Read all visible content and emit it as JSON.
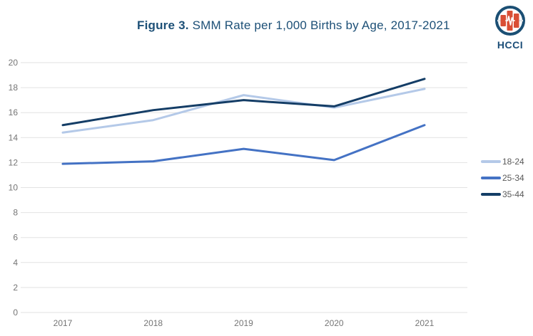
{
  "header": {
    "title_prefix": "Figure 3.",
    "title_rest": " SMM Rate per 1,000 Births by Age, 2017-2021"
  },
  "logo": {
    "text": "HCCI",
    "icon": "hcci-heartbeat-bars-logo",
    "ring_color": "#1b4f74",
    "bar_color": "#d94e35",
    "text_color": "#1c4e78"
  },
  "colors": {
    "title": "#1d5077",
    "gridline": "#e2e2e2",
    "axis_text": "#757575",
    "legend_text": "#595959",
    "background": "#ffffff"
  },
  "chart_data": {
    "type": "line",
    "title": "Figure 3. SMM Rate per 1,000 Births by Age, 2017-2021",
    "xlabel": "",
    "ylabel": "",
    "categories": [
      "2017",
      "2018",
      "2019",
      "2020",
      "2021"
    ],
    "series": [
      {
        "name": "18-24",
        "color": "#b4c9e8",
        "values": [
          14.4,
          15.4,
          17.4,
          16.4,
          17.9
        ]
      },
      {
        "name": "25-34",
        "color": "#4472c4",
        "values": [
          11.9,
          12.1,
          13.1,
          12.2,
          15.0
        ]
      },
      {
        "name": "35-44",
        "color": "#143d66",
        "values": [
          15.0,
          16.2,
          17.0,
          16.5,
          18.7
        ]
      }
    ],
    "ylim": [
      0,
      20
    ],
    "ytick_step": 2,
    "yticks": [
      0,
      2,
      4,
      6,
      8,
      10,
      12,
      14,
      16,
      18,
      20
    ],
    "grid": true,
    "legend_position": "right"
  }
}
